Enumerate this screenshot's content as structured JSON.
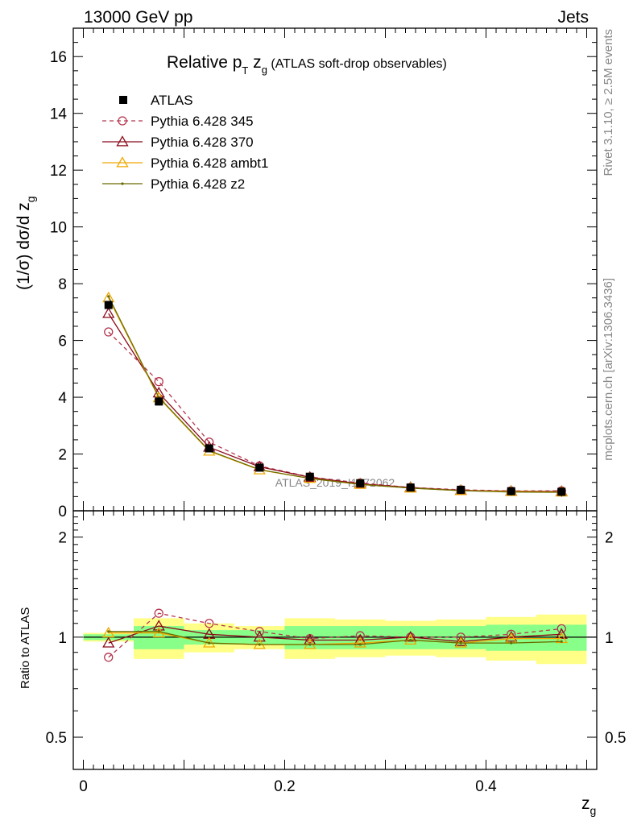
{
  "header": {
    "left": "13000 GeV pp",
    "right": "Jets"
  },
  "side": {
    "rivet": "Rivet 3.1.10, ≥ 2.5M events",
    "mcplots": "mcplots.cern.ch [arXiv:1306.3436]"
  },
  "chart_data": {
    "type": "line",
    "title": "Relative p_T z_g (ATLAS soft-drop observables)",
    "title_parts": {
      "main": "Relative p",
      "sub1": "T",
      "mid": " z",
      "sub2": "g",
      "rest": " (ATLAS soft-drop observables)"
    },
    "ylabel": "(1/σ) dσ/d z_g",
    "ylabel_parts": {
      "main": "(1/σ) dσ/d z",
      "sub": "g"
    },
    "xlabel": "z_g",
    "xlabel_parts": {
      "main": "z",
      "sub": "g"
    },
    "ratio_ylabel": "Ratio to ATLAS",
    "watermark": "ATLAS_2019_I1772062",
    "xlim": [
      -0.01,
      0.51
    ],
    "ylim": [
      0,
      17
    ],
    "ratio_ylim": [
      0.4,
      2.4
    ],
    "x_ticks": [
      0,
      0.2,
      0.4
    ],
    "x_tick_labels": [
      "0",
      "0.2",
      "0.4"
    ],
    "y_ticks": [
      0,
      2,
      4,
      6,
      8,
      10,
      12,
      14,
      16
    ],
    "y_tick_labels": [
      "0",
      "2",
      "4",
      "6",
      "8",
      "10",
      "12",
      "14",
      "16"
    ],
    "ratio_ticks": [
      0.5,
      1,
      2
    ],
    "ratio_tick_labels": [
      "0.5",
      "1",
      "2"
    ],
    "bin_edges": [
      0,
      0.05,
      0.1,
      0.15,
      0.2,
      0.25,
      0.3,
      0.35,
      0.4,
      0.45,
      0.5
    ],
    "x": [
      0.025,
      0.075,
      0.125,
      0.175,
      0.225,
      0.275,
      0.325,
      0.375,
      0.425,
      0.475
    ],
    "data": {
      "name": "ATLAS",
      "values": [
        7.25,
        3.85,
        2.2,
        1.52,
        1.2,
        0.97,
        0.82,
        0.74,
        0.69,
        0.67
      ],
      "err_inner": [
        0.02,
        0.08,
        0.05,
        0.05,
        0.08,
        0.08,
        0.08,
        0.08,
        0.09,
        0.09
      ],
      "err_outer": [
        0.03,
        0.14,
        0.1,
        0.08,
        0.14,
        0.13,
        0.12,
        0.13,
        0.15,
        0.17
      ]
    },
    "series": [
      {
        "name": "Pythia 6.428 345",
        "color": "#b5374f",
        "dashed": true,
        "marker": "circle",
        "values": [
          6.3,
          4.55,
          2.42,
          1.58,
          1.19,
          0.98,
          0.82,
          0.74,
          0.7,
          0.7
        ]
      },
      {
        "name": "Pythia 6.428 370",
        "color": "#8b0a1a",
        "dashed": false,
        "marker": "triangle",
        "values": [
          6.95,
          4.15,
          2.24,
          1.55,
          1.18,
          0.95,
          0.82,
          0.72,
          0.69,
          0.68
        ]
      },
      {
        "name": "Pythia 6.428 ambt1",
        "color": "#f0a800",
        "dashed": false,
        "marker": "triangle",
        "values": [
          7.5,
          3.98,
          2.1,
          1.44,
          1.14,
          0.93,
          0.8,
          0.71,
          0.68,
          0.66
        ]
      },
      {
        "name": "Pythia 6.428 z2",
        "color": "#6b6b00",
        "dashed": false,
        "marker": "dot",
        "values": [
          7.55,
          4.0,
          2.12,
          1.45,
          1.14,
          0.93,
          0.8,
          0.71,
          0.66,
          0.65
        ]
      }
    ],
    "ratio_series": [
      [
        0.87,
        1.18,
        1.1,
        1.04,
        0.99,
        1.01,
        1.0,
        1.0,
        1.02,
        1.06
      ],
      [
        0.96,
        1.08,
        1.02,
        1.0,
        0.98,
        0.98,
        1.0,
        0.97,
        1.0,
        1.02
      ],
      [
        1.03,
        1.03,
        0.96,
        0.95,
        0.95,
        0.96,
        0.98,
        0.96,
        0.99,
        0.99
      ],
      [
        1.04,
        1.04,
        0.96,
        0.95,
        0.95,
        0.95,
        0.98,
        0.96,
        0.96,
        0.97
      ]
    ],
    "grid": false,
    "legend_position": "top-left"
  }
}
